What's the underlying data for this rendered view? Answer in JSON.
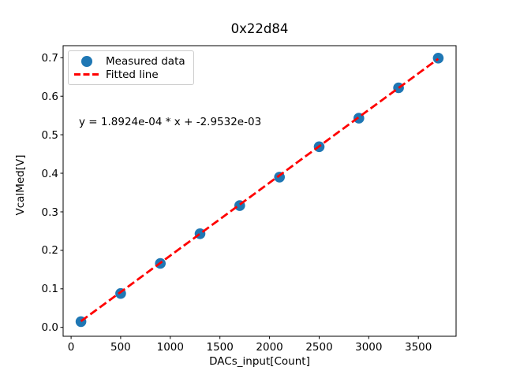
{
  "chart_data": {
    "type": "scatter",
    "title": "0x22d84",
    "xlabel": "DACs_input[Count]",
    "ylabel": "VcalMed[V]",
    "annotation": "y = 1.8924e-04 * x + -2.9532e-03",
    "grid": false,
    "legend": {
      "position": "upper left",
      "entries": [
        {
          "label": "Measured data",
          "marker": "circle",
          "color": "#1f77b4"
        },
        {
          "label": "Fitted line",
          "marker": "dashed-line",
          "color": "#ff0000"
        }
      ]
    },
    "series": [
      {
        "name": "Measured data",
        "type": "scatter",
        "color": "#1f77b4",
        "marker_radius_px": 6.8,
        "x": [
          100,
          500,
          900,
          1300,
          1700,
          2100,
          2500,
          2900,
          3300,
          3700
        ],
        "y": [
          0.015,
          0.088,
          0.166,
          0.243,
          0.316,
          0.39,
          0.469,
          0.543,
          0.622,
          0.699
        ]
      },
      {
        "name": "Fitted line",
        "type": "line",
        "style": "dashed",
        "color": "#ff0000",
        "slope": 0.00018924,
        "intercept": -0.0029532,
        "x_start": 100,
        "x_end": 3700
      }
    ],
    "x_ticks": {
      "values": [
        0,
        500,
        1000,
        1500,
        2000,
        2500,
        3000,
        3500
      ],
      "labels": [
        "0",
        "500",
        "1000",
        "1500",
        "2000",
        "2500",
        "3000",
        "3500"
      ]
    },
    "y_ticks": {
      "values": [
        0.0,
        0.1,
        0.2,
        0.3,
        0.4,
        0.5,
        0.6,
        0.7
      ],
      "labels": [
        "0.0",
        "0.1",
        "0.2",
        "0.3",
        "0.4",
        "0.5",
        "0.6",
        "0.7"
      ]
    },
    "xlim": [
      -80,
      3880
    ],
    "ylim": [
      -0.0231,
      0.7313
    ],
    "axis_color": "#000000",
    "background_color": "#ffffff"
  }
}
